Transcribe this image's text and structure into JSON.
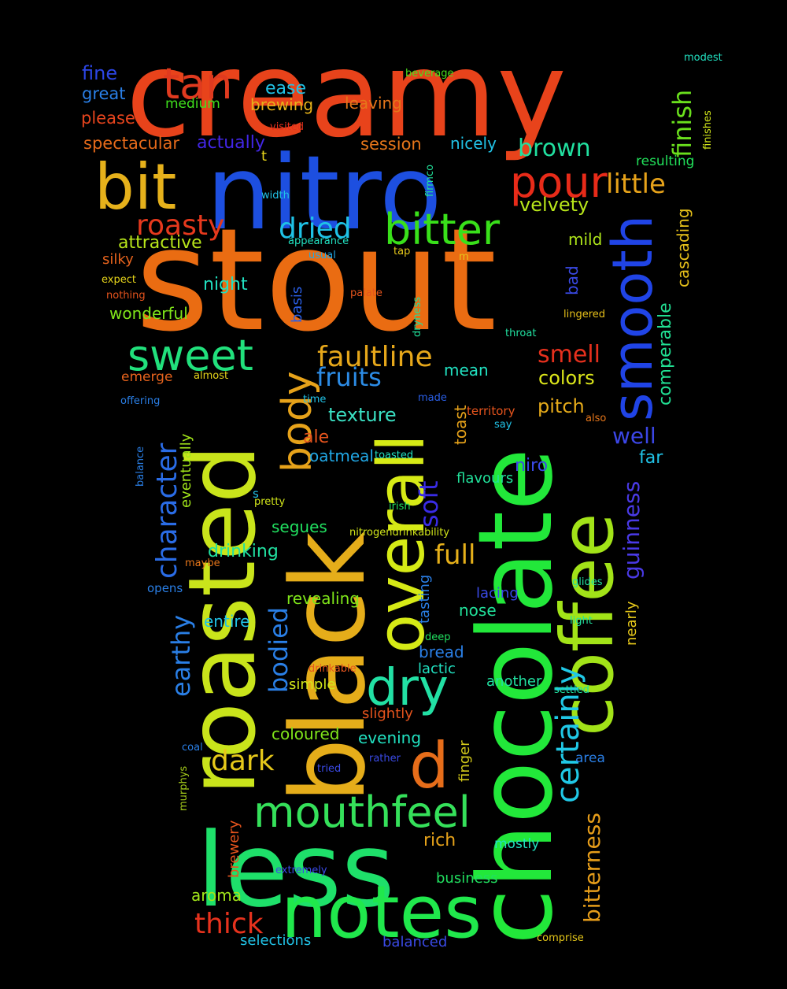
{
  "title": "",
  "words": [
    {
      "text": "creamy",
      "color": "#e8431b"
    },
    {
      "text": "stout",
      "color": "#ea6c12"
    },
    {
      "text": "nitro",
      "color": "#1d4fe0"
    },
    {
      "text": "chocolate",
      "color": "#22e83a"
    },
    {
      "text": "black",
      "color": "#e5ad1a"
    },
    {
      "text": "roasted",
      "color": "#c9e41b"
    },
    {
      "text": "less",
      "color": "#1ee06a"
    },
    {
      "text": "coffee",
      "color": "#a2e318"
    },
    {
      "text": "notes",
      "color": "#20e84c"
    },
    {
      "text": "overall",
      "color": "#d6ea16"
    },
    {
      "text": "bit",
      "color": "#e6b11b"
    },
    {
      "text": "smooth",
      "color": "#2044e6"
    },
    {
      "text": "mouthfeel",
      "color": "#35e05a"
    },
    {
      "text": "tan",
      "color": "#e03a1f"
    },
    {
      "text": "bitter",
      "color": "#39e01a"
    },
    {
      "text": "sweet",
      "color": "#21e07c"
    },
    {
      "text": "pour",
      "color": "#e82b19"
    },
    {
      "text": "body",
      "color": "#e6a21a"
    },
    {
      "text": "dry",
      "color": "#22e0a4"
    },
    {
      "text": "d",
      "color": "#e66d1a"
    },
    {
      "text": "certainly",
      "color": "#20c8e6"
    },
    {
      "text": "faultline",
      "color": "#e6a71a"
    },
    {
      "text": "roasty",
      "color": "#e6391d"
    },
    {
      "text": "dried",
      "color": "#1fc2e6"
    },
    {
      "text": "character",
      "color": "#2a6ce6"
    },
    {
      "text": "little",
      "color": "#e6a21a"
    },
    {
      "text": "thick",
      "color": "#e6321d"
    },
    {
      "text": "dark",
      "color": "#e6c81a"
    },
    {
      "text": "fruits",
      "color": "#2c8ce6"
    },
    {
      "text": "brown",
      "color": "#21e0a0"
    },
    {
      "text": "finish",
      "color": "#6ae01d"
    },
    {
      "text": "guinness",
      "color": "#4a3ae6"
    },
    {
      "text": "bitterness",
      "color": "#e69d1a"
    },
    {
      "text": "smell",
      "color": "#e6301d"
    },
    {
      "text": "full",
      "color": "#e6b01a"
    },
    {
      "text": "soft",
      "color": "#3a2ce6"
    },
    {
      "text": "well",
      "color": "#3b46e6"
    },
    {
      "text": "velvety",
      "color": "#b8e61a"
    },
    {
      "text": "colors",
      "color": "#dce61a"
    },
    {
      "text": "bodied",
      "color": "#2a7fe6"
    },
    {
      "text": "earthy",
      "color": "#2a7fe6"
    },
    {
      "text": "comperable",
      "color": "#21e093"
    },
    {
      "text": "cascading",
      "color": "#e6c01a"
    },
    {
      "text": "texture",
      "color": "#3ae0c3"
    },
    {
      "text": "pitch",
      "color": "#e6ab1a"
    },
    {
      "text": "fine",
      "color": "#2c46e6"
    },
    {
      "text": "great",
      "color": "#2a7fe6"
    },
    {
      "text": "please",
      "color": "#e6441d"
    },
    {
      "text": "spectacular",
      "color": "#e66a1a"
    },
    {
      "text": "actually",
      "color": "#4226e6"
    },
    {
      "text": "ease",
      "color": "#21c2e6"
    },
    {
      "text": "brewing",
      "color": "#e6b21a"
    },
    {
      "text": "leaving",
      "color": "#e6761a"
    },
    {
      "text": "medium",
      "color": "#3fe01d"
    },
    {
      "text": "beverage",
      "color": "#4ae01d"
    },
    {
      "text": "modest",
      "color": "#21e0c0"
    },
    {
      "text": "finishes",
      "color": "#d2e61a"
    },
    {
      "text": "resulting",
      "color": "#21e05a"
    },
    {
      "text": "session",
      "color": "#e6761a"
    },
    {
      "text": "nicely",
      "color": "#21c2e6"
    },
    {
      "text": "attractive",
      "color": "#b8e61a"
    },
    {
      "text": "silky",
      "color": "#e6631d"
    },
    {
      "text": "mild",
      "color": "#aee61a"
    },
    {
      "text": "night",
      "color": "#21e0c0"
    },
    {
      "text": "wonderful",
      "color": "#80e61a"
    },
    {
      "text": "expect",
      "color": "#e6d41a"
    },
    {
      "text": "nothing",
      "color": "#e6541d"
    },
    {
      "text": "bad",
      "color": "#3a4ae6"
    },
    {
      "text": "lingered",
      "color": "#e6c01a"
    },
    {
      "text": "basis",
      "color": "#2a5fe6"
    },
    {
      "text": "palate",
      "color": "#e6541d"
    },
    {
      "text": "dryness",
      "color": "#21e09a"
    },
    {
      "text": "throat",
      "color": "#21e0a0"
    },
    {
      "text": "mean",
      "color": "#21e0c0"
    },
    {
      "text": "emerge",
      "color": "#e6631d"
    },
    {
      "text": "almost",
      "color": "#e6d41a"
    },
    {
      "text": "offering",
      "color": "#2a7fe6"
    },
    {
      "text": "eventually",
      "color": "#a2e61a"
    },
    {
      "text": "time",
      "color": "#21c2e6"
    },
    {
      "text": "made",
      "color": "#2a5fe6"
    },
    {
      "text": "toast",
      "color": "#e6a21a"
    },
    {
      "text": "territory",
      "color": "#e6541d"
    },
    {
      "text": "also",
      "color": "#e6761a"
    },
    {
      "text": "say",
      "color": "#21c2e6"
    },
    {
      "text": "ale",
      "color": "#e6541d"
    },
    {
      "text": "oatmeal",
      "color": "#21a8e6"
    },
    {
      "text": "toasted",
      "color": "#21e0c0"
    },
    {
      "text": "far",
      "color": "#21c2e6"
    },
    {
      "text": "niro",
      "color": "#3a4ae6"
    },
    {
      "text": "flavours",
      "color": "#21e09a"
    },
    {
      "text": "balance",
      "color": "#2a7fe6"
    },
    {
      "text": "s",
      "color": "#21c2e6"
    },
    {
      "text": "pretty",
      "color": "#d2e61a"
    },
    {
      "text": "irish",
      "color": "#21e060"
    },
    {
      "text": "segues",
      "color": "#21e060"
    },
    {
      "text": "nitrogendrinkability",
      "color": "#d2e61a"
    },
    {
      "text": "drinking",
      "color": "#21e0a0"
    },
    {
      "text": "maybe",
      "color": "#e6761a"
    },
    {
      "text": "tasting",
      "color": "#2a7fe6"
    },
    {
      "text": "glides",
      "color": "#21e0a0"
    },
    {
      "text": "opens",
      "color": "#2a7fe6"
    },
    {
      "text": "revealing",
      "color": "#80e61a"
    },
    {
      "text": "lacing",
      "color": "#3a4ae6"
    },
    {
      "text": "nearly",
      "color": "#e6c81a"
    },
    {
      "text": "entire",
      "color": "#21c2e6"
    },
    {
      "text": "nose",
      "color": "#21e09a"
    },
    {
      "text": "light",
      "color": "#21e0a0"
    },
    {
      "text": "deep",
      "color": "#21e060"
    },
    {
      "text": "bread",
      "color": "#2a7fe6"
    },
    {
      "text": "lactic",
      "color": "#21e0c0"
    },
    {
      "text": "drinkable",
      "color": "#e6541d"
    },
    {
      "text": "simple",
      "color": "#d2e61a"
    },
    {
      "text": "another",
      "color": "#21e0a0"
    },
    {
      "text": "settled",
      "color": "#21e0a0"
    },
    {
      "text": "slightly",
      "color": "#e6541d"
    },
    {
      "text": "coloured",
      "color": "#80e61a"
    },
    {
      "text": "evening",
      "color": "#21e0c0"
    },
    {
      "text": "finger",
      "color": "#d2c81a"
    },
    {
      "text": "coal",
      "color": "#2a7fe6"
    },
    {
      "text": "tried",
      "color": "#3a4ae6"
    },
    {
      "text": "rather",
      "color": "#3a4ae6"
    },
    {
      "text": "area",
      "color": "#2a7fe6"
    },
    {
      "text": "murphys",
      "color": "#a2c81a"
    },
    {
      "text": "rich",
      "color": "#e6a21a"
    },
    {
      "text": "mostly",
      "color": "#21e0c0"
    },
    {
      "text": "brewery",
      "color": "#e6541d"
    },
    {
      "text": "extremely",
      "color": "#3a4ae6"
    },
    {
      "text": "business",
      "color": "#21e060"
    },
    {
      "text": "aroma",
      "color": "#a2e61a"
    },
    {
      "text": "selections",
      "color": "#21c2e6"
    },
    {
      "text": "balanced",
      "color": "#3a4ae6"
    },
    {
      "text": "comprise",
      "color": "#e6c81a"
    },
    {
      "text": "t",
      "color": "#e6d41a"
    },
    {
      "text": "visited",
      "color": "#e6301d"
    },
    {
      "text": "width",
      "color": "#21c2e6"
    },
    {
      "text": "appearance",
      "color": "#21e0c0"
    },
    {
      "text": "usual",
      "color": "#21a8e6"
    },
    {
      "text": "firmco",
      "color": "#21e09a"
    },
    {
      "text": "tap",
      "color": "#e6c81a"
    },
    {
      "text": "m",
      "color": "#e6c81a"
    }
  ]
}
